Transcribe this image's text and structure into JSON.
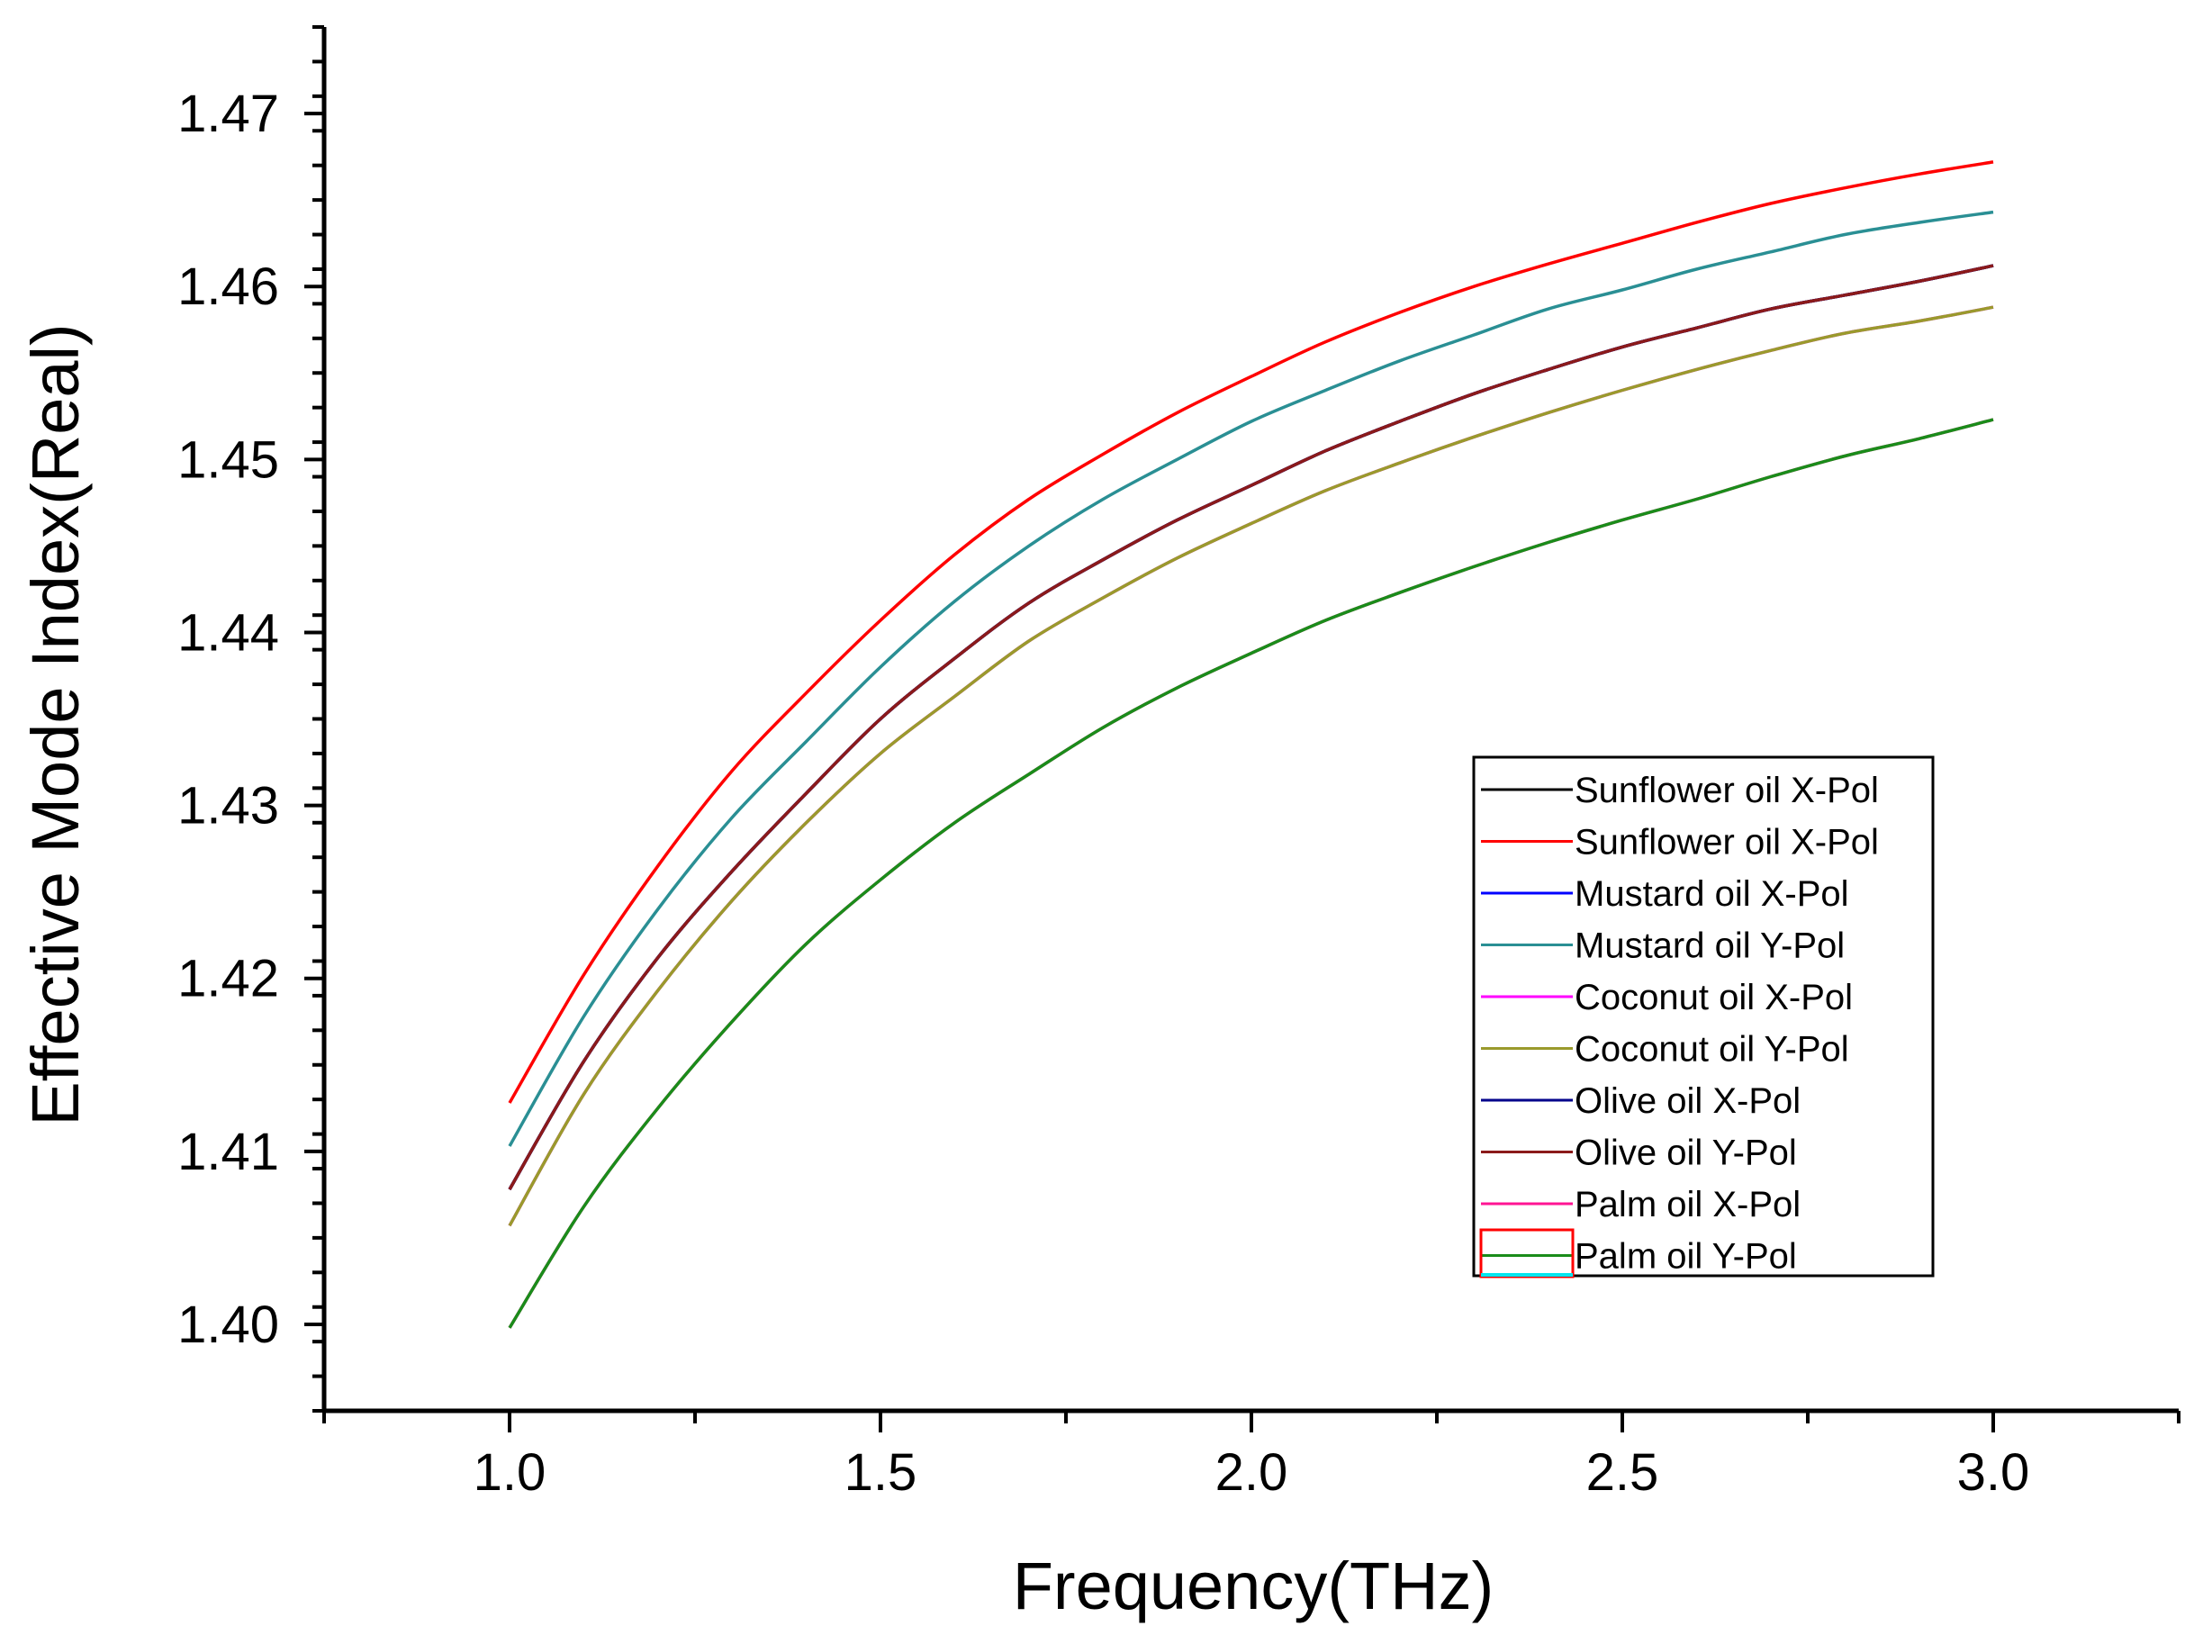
{
  "chart_data": {
    "type": "line",
    "title": "",
    "xlabel": "Frequency(THz)",
    "ylabel": "Effective Mode Index(Real)",
    "xlim": [
      0.75,
      3.25
    ],
    "ylim": [
      1.395,
      1.475
    ],
    "xticks": [
      "1.0",
      "1.5",
      "2.0",
      "2.5",
      "3.0"
    ],
    "xtick_values": [
      1.0,
      1.5,
      2.0,
      2.5,
      3.0
    ],
    "yticks": [
      "1.40",
      "1.41",
      "1.42",
      "1.43",
      "1.44",
      "1.45",
      "1.46",
      "1.47"
    ],
    "ytick_values": [
      1.4,
      1.41,
      1.42,
      1.43,
      1.44,
      1.45,
      1.46,
      1.47
    ],
    "grid": false,
    "legend_position": "right",
    "x": [
      1.0,
      1.1,
      1.2,
      1.3,
      1.4,
      1.5,
      1.6,
      1.7,
      1.8,
      1.9,
      2.0,
      2.1,
      2.2,
      2.3,
      2.4,
      2.5,
      2.6,
      2.7,
      2.8,
      2.9,
      3.0
    ],
    "series": [
      {
        "name": "Sunflower oil X-Pol",
        "color": "#000000",
        "values": [
          1.4078,
          1.4152,
          1.4212,
          1.4262,
          1.4307,
          1.435,
          1.4385,
          1.4417,
          1.4442,
          1.4465,
          1.4485,
          1.4505,
          1.4522,
          1.4538,
          1.4552,
          1.4565,
          1.4576,
          1.4587,
          1.4595,
          1.4603,
          1.4612
        ]
      },
      {
        "name": "Sunflower oil X-Pol",
        "color": "#ff0000",
        "values": [
          1.4128,
          1.4202,
          1.4265,
          1.432,
          1.4365,
          1.4407,
          1.4445,
          1.4477,
          1.4503,
          1.4527,
          1.4548,
          1.4568,
          1.4585,
          1.46,
          1.4613,
          1.4625,
          1.4637,
          1.4648,
          1.4657,
          1.4665,
          1.4672
        ]
      },
      {
        "name": "Mustard oil X-Pol",
        "color": "#0000ff",
        "values": [
          1.4078,
          1.4152,
          1.4212,
          1.4262,
          1.4307,
          1.435,
          1.4385,
          1.4417,
          1.4442,
          1.4465,
          1.4485,
          1.4505,
          1.4522,
          1.4538,
          1.4552,
          1.4565,
          1.4576,
          1.4587,
          1.4595,
          1.4603,
          1.4612
        ]
      },
      {
        "name": "Mustard oil Y-Pol",
        "color": "#2a8f94",
        "values": [
          1.4103,
          1.4178,
          1.424,
          1.4293,
          1.4337,
          1.438,
          1.4418,
          1.445,
          1.4477,
          1.45,
          1.4522,
          1.454,
          1.4557,
          1.4572,
          1.4587,
          1.4598,
          1.461,
          1.462,
          1.463,
          1.4637,
          1.4643
        ]
      },
      {
        "name": "Coconut oil X-Pol",
        "color": "#ff00ff",
        "values": [
          1.4057,
          1.4133,
          1.4193,
          1.4245,
          1.429,
          1.433,
          1.4363,
          1.4395,
          1.442,
          1.4443,
          1.4463,
          1.4482,
          1.4498,
          1.4513,
          1.4527,
          1.454,
          1.4552,
          1.4563,
          1.4573,
          1.458,
          1.4588
        ]
      },
      {
        "name": "Coconut oil Y-Pol",
        "color": "#9a9a2c",
        "values": [
          1.4057,
          1.4133,
          1.4193,
          1.4245,
          1.429,
          1.433,
          1.4363,
          1.4395,
          1.442,
          1.4443,
          1.4463,
          1.4482,
          1.4498,
          1.4513,
          1.4527,
          1.454,
          1.4552,
          1.4563,
          1.4573,
          1.458,
          1.4588
        ]
      },
      {
        "name": "Olive oil X-Pol",
        "color": "#00008b",
        "values": [
          1.4078,
          1.4152,
          1.4212,
          1.4262,
          1.4307,
          1.435,
          1.4385,
          1.4417,
          1.4442,
          1.4465,
          1.4485,
          1.4505,
          1.4522,
          1.4538,
          1.4552,
          1.4565,
          1.4576,
          1.4587,
          1.4595,
          1.4603,
          1.4612
        ]
      },
      {
        "name": "Olive oil Y-Pol",
        "color": "#8b1a1a",
        "values": [
          1.4078,
          1.4152,
          1.4212,
          1.4262,
          1.4307,
          1.435,
          1.4385,
          1.4417,
          1.4442,
          1.4465,
          1.4485,
          1.4505,
          1.4522,
          1.4538,
          1.4552,
          1.4565,
          1.4576,
          1.4587,
          1.4595,
          1.4603,
          1.4612
        ]
      },
      {
        "name": "Palm oil X-Pol",
        "color": "#ff1493",
        "values": [
          1.3998,
          1.4068,
          1.4125,
          1.4175,
          1.422,
          1.4257,
          1.429,
          1.4318,
          1.4345,
          1.4368,
          1.4388,
          1.4407,
          1.4423,
          1.4438,
          1.4452,
          1.4465,
          1.4477,
          1.449,
          1.4502,
          1.4512,
          1.4523
        ]
      },
      {
        "name": "Palm oil Y-Pol",
        "color": "#1a8c1a",
        "values": [
          1.3998,
          1.4068,
          1.4125,
          1.4175,
          1.422,
          1.4257,
          1.429,
          1.4318,
          1.4345,
          1.4368,
          1.4388,
          1.4407,
          1.4423,
          1.4438,
          1.4452,
          1.4465,
          1.4477,
          1.449,
          1.4502,
          1.4512,
          1.4523
        ]
      }
    ],
    "legend_extra_swatches": [
      {
        "color": "#ff0000",
        "shape": "box"
      },
      {
        "color": "#00e5ee",
        "shape": "line"
      }
    ]
  }
}
